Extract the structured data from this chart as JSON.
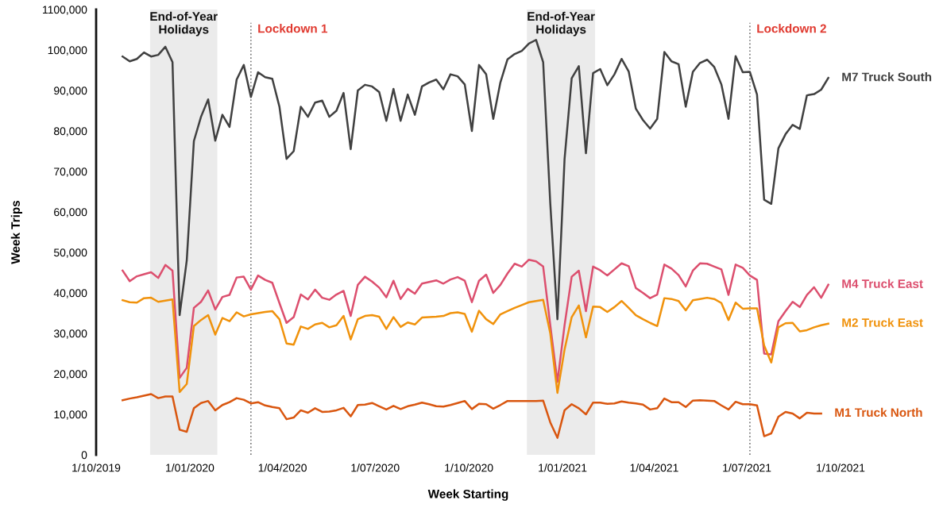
{
  "chart_data": {
    "type": "line",
    "xlabel": "Week Starting",
    "ylabel": "Week Trips",
    "x": [
      "2019-10-27",
      "2019-11-03",
      "2019-11-10",
      "2019-11-17",
      "2019-11-24",
      "2019-12-01",
      "2019-12-08",
      "2019-12-15",
      "2019-12-22",
      "2019-12-29",
      "2020-01-05",
      "2020-01-12",
      "2020-01-19",
      "2020-01-26",
      "2020-02-02",
      "2020-02-09",
      "2020-02-16",
      "2020-02-23",
      "2020-03-01",
      "2020-03-08",
      "2020-03-15",
      "2020-03-22",
      "2020-03-29",
      "2020-04-05",
      "2020-04-12",
      "2020-04-19",
      "2020-04-26",
      "2020-05-03",
      "2020-05-10",
      "2020-05-17",
      "2020-05-24",
      "2020-05-31",
      "2020-06-07",
      "2020-06-14",
      "2020-06-21",
      "2020-06-28",
      "2020-07-05",
      "2020-07-12",
      "2020-07-19",
      "2020-07-26",
      "2020-08-02",
      "2020-08-09",
      "2020-08-16",
      "2020-08-23",
      "2020-08-30",
      "2020-09-06",
      "2020-09-13",
      "2020-09-20",
      "2020-09-27",
      "2020-10-04",
      "2020-10-11",
      "2020-10-18",
      "2020-10-25",
      "2020-11-01",
      "2020-11-08",
      "2020-11-15",
      "2020-11-22",
      "2020-11-29",
      "2020-12-06",
      "2020-12-13",
      "2020-12-20",
      "2020-12-27",
      "2021-01-03",
      "2021-01-10",
      "2021-01-17",
      "2021-01-24",
      "2021-01-31",
      "2021-02-07",
      "2021-02-14",
      "2021-02-21",
      "2021-02-28",
      "2021-03-07",
      "2021-03-14",
      "2021-03-21",
      "2021-03-28",
      "2021-04-04",
      "2021-04-11",
      "2021-04-18",
      "2021-04-25",
      "2021-05-02",
      "2021-05-09",
      "2021-05-16",
      "2021-05-23",
      "2021-05-30",
      "2021-06-06",
      "2021-06-13",
      "2021-06-20",
      "2021-06-27",
      "2021-07-04",
      "2021-07-11",
      "2021-07-18",
      "2021-07-25",
      "2021-08-01",
      "2021-08-08",
      "2021-08-15",
      "2021-08-22",
      "2021-08-29",
      "2021-09-05",
      "2021-09-12",
      "2021-09-19"
    ],
    "series": [
      {
        "name": "M7 Truck South",
        "color": "#404040",
        "values": [
          98400,
          97200,
          97800,
          99400,
          98400,
          98800,
          100800,
          97000,
          34500,
          48000,
          77500,
          83500,
          87800,
          77600,
          84000,
          81000,
          92700,
          96300,
          88400,
          94500,
          93300,
          92900,
          86000,
          73100,
          75000,
          86000,
          83500,
          87000,
          87500,
          83500,
          85000,
          89400,
          75500,
          90000,
          91400,
          91000,
          89600,
          82500,
          90400,
          82500,
          89000,
          84000,
          91000,
          92000,
          92700,
          90300,
          94000,
          93500,
          91500,
          80000,
          96300,
          94000,
          83000,
          92000,
          97700,
          99000,
          99800,
          101600,
          102500,
          97000,
          62000,
          33500,
          73000,
          93000,
          96000,
          74500,
          94300,
          95300,
          91300,
          94000,
          97800,
          94700,
          85500,
          82700,
          80600,
          83000,
          99500,
          97200,
          96500,
          86000,
          94600,
          96800,
          97600,
          95800,
          91500,
          83000,
          98500,
          94500,
          94600,
          89000,
          63000,
          62000,
          75700,
          79200,
          81500,
          80500,
          88800,
          89100,
          90200,
          93100
        ]
      },
      {
        "name": "M4 Truck East",
        "color": "#dc4f6e",
        "values": [
          45500,
          42900,
          44100,
          44600,
          45100,
          43700,
          46900,
          45500,
          19000,
          21500,
          36300,
          37800,
          40600,
          35900,
          39000,
          39500,
          43800,
          44000,
          40800,
          44300,
          43200,
          42500,
          37500,
          32600,
          34000,
          39600,
          38400,
          40800,
          38800,
          38300,
          39600,
          40500,
          34300,
          42000,
          44000,
          42800,
          41300,
          38900,
          43000,
          38500,
          41000,
          39800,
          42300,
          42700,
          43100,
          42300,
          43300,
          43900,
          43000,
          37700,
          43000,
          44500,
          40000,
          42000,
          44800,
          47200,
          46500,
          48200,
          47800,
          46500,
          32000,
          18000,
          32000,
          44000,
          45500,
          35500,
          46500,
          45600,
          44300,
          45800,
          47300,
          46600,
          41200,
          40000,
          38700,
          39600,
          47000,
          46000,
          44400,
          41600,
          45500,
          47300,
          47200,
          46500,
          45800,
          39500,
          47000,
          46200,
          44300,
          43200,
          25000,
          24800,
          33000,
          35500,
          37800,
          36500,
          39500,
          41400,
          38800,
          42000
        ]
      },
      {
        "name": "M2 Truck East",
        "color": "#f0920c",
        "values": [
          38200,
          37700,
          37600,
          38700,
          38800,
          37800,
          38100,
          38400,
          15500,
          17500,
          31800,
          33300,
          34500,
          29700,
          33800,
          33000,
          35200,
          34200,
          34700,
          35000,
          35300,
          35500,
          33500,
          27500,
          27200,
          31700,
          31100,
          32200,
          32600,
          31500,
          32000,
          34300,
          28500,
          33500,
          34300,
          34500,
          34100,
          31100,
          34000,
          31600,
          32700,
          32200,
          33900,
          34000,
          34100,
          34300,
          35000,
          35200,
          34800,
          30400,
          35600,
          33500,
          32300,
          34700,
          35500,
          36300,
          37000,
          37700,
          38000,
          38300,
          30000,
          15300,
          26000,
          34000,
          36900,
          29000,
          36600,
          36500,
          35300,
          36500,
          38000,
          36300,
          34500,
          33500,
          32600,
          31800,
          38700,
          38500,
          38000,
          35700,
          38200,
          38500,
          38800,
          38500,
          37500,
          33300,
          37600,
          36100,
          36200,
          36200,
          27000,
          22800,
          31500,
          32500,
          32600,
          30500,
          30800,
          31500,
          32000,
          32400
        ]
      },
      {
        "name": "M1 Truck North",
        "color": "#d9560f",
        "values": [
          13500,
          13900,
          14200,
          14600,
          15000,
          14000,
          14400,
          14400,
          6200,
          5700,
          11500,
          12800,
          13300,
          11000,
          12300,
          13000,
          14000,
          13600,
          12700,
          13000,
          12200,
          11800,
          11500,
          8800,
          9200,
          11000,
          10400,
          11500,
          10600,
          10700,
          11000,
          11600,
          9500,
          12300,
          12400,
          12800,
          12000,
          11200,
          12100,
          11300,
          12000,
          12400,
          12900,
          12500,
          12000,
          11900,
          12300,
          12800,
          13300,
          11300,
          12600,
          12500,
          11400,
          12300,
          13300,
          13300,
          13300,
          13300,
          13300,
          13400,
          8000,
          4200,
          11000,
          12500,
          11500,
          10000,
          12900,
          12900,
          12600,
          12700,
          13200,
          12900,
          12700,
          12400,
          11200,
          11500,
          13900,
          13000,
          13000,
          11800,
          13400,
          13500,
          13400,
          13300,
          12200,
          11200,
          13100,
          12500,
          12500,
          12200,
          4600,
          5300,
          9400,
          10600,
          10200,
          9000,
          10400,
          10200,
          10200,
          null
        ]
      }
    ],
    "xlim": [
      "2019-10-01",
      "2021-10-01"
    ],
    "xticks": [
      {
        "value": "2019-10-01",
        "label": "1/10/2019"
      },
      {
        "value": "2020-01-01",
        "label": "1/01/2020"
      },
      {
        "value": "2020-04-01",
        "label": "1/04/2020"
      },
      {
        "value": "2020-07-01",
        "label": "1/07/2020"
      },
      {
        "value": "2020-10-01",
        "label": "1/10/2020"
      },
      {
        "value": "2021-01-01",
        "label": "1/01/2021"
      },
      {
        "value": "2021-04-01",
        "label": "1/04/2021"
      },
      {
        "value": "2021-07-01",
        "label": "1/07/2021"
      },
      {
        "value": "2021-10-01",
        "label": "1/10/2021"
      }
    ],
    "ylim": [
      0,
      110000
    ],
    "yticks": [
      0,
      {
        "value": 10000,
        "label": "10,000"
      },
      {
        "value": 20000,
        "label": "20,000"
      },
      {
        "value": 30000,
        "label": "30,000"
      },
      {
        "value": 40000,
        "label": "40,000"
      },
      {
        "value": 50000,
        "label": "50,000"
      },
      {
        "value": 60000,
        "label": "60,000"
      },
      {
        "value": 70000,
        "label": "70,000"
      },
      {
        "value": 80000,
        "label": "80,000"
      },
      {
        "value": 90000,
        "label": "90,000"
      },
      {
        "value": 100000,
        "label": "100,000"
      },
      {
        "value": 110000,
        "label": "1100,000"
      }
    ],
    "bands": [
      {
        "axis": "x",
        "from": "2019-11-23",
        "to": "2020-01-28",
        "label": "End-of-Year\nHolidays",
        "color": "#ebebeb"
      },
      {
        "axis": "x",
        "from": "2020-11-27",
        "to": "2021-02-02",
        "label": "End-of-Year\nHolidays",
        "color": "#ebebeb"
      }
    ],
    "ref_lines": [
      {
        "axis": "x",
        "value": "2020-03-01",
        "label": "Lockdown 1",
        "color": "#777777",
        "line_style": "dotted"
      },
      {
        "axis": "x",
        "value": "2021-07-04",
        "label": "Lockdown 2",
        "color": "#777777",
        "line_style": "dotted"
      }
    ],
    "grid": false,
    "legend": false,
    "marker": "none",
    "line_style": "solid"
  }
}
